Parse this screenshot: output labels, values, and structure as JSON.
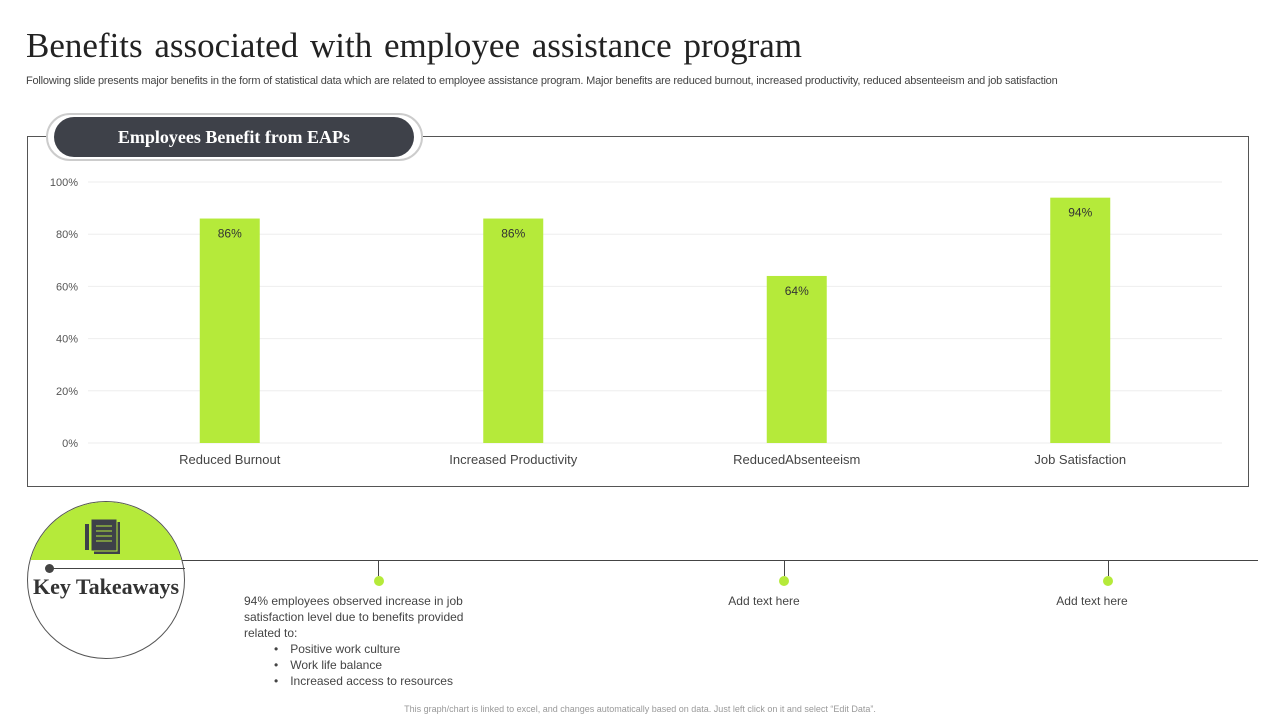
{
  "title": "Benefits associated with employee assistance program",
  "subtitle": "Following slide presents major benefits in the form of statistical data which are related to  employee assistance program. Major benefits are reduced burnout, increased productivity, reduced absenteeism and job satisfaction",
  "chart_data": {
    "type": "bar",
    "title": "Employees Benefit from EAPs",
    "categories": [
      "Reduced Burnout",
      "Increased Productivity",
      "ReducedAbsenteeism",
      "Job Satisfaction"
    ],
    "values": [
      86,
      86,
      64,
      94
    ],
    "data_labels": [
      "86%",
      "86%",
      "64%",
      "94%"
    ],
    "yticks": [
      "0%",
      "20%",
      "40%",
      "60%",
      "80%",
      "100%"
    ],
    "ylim": [
      0,
      100
    ],
    "grid": true,
    "bar_color": "#b5ea3a"
  },
  "takeaways": {
    "heading": "Key Takeaways",
    "icon": "document-pen-icon",
    "main_text": "94% employees observed  increase in job satisfaction level  due to benefits  provided related to:",
    "bullets": [
      "Positive work culture",
      "Work life balance",
      "Increased  access to resources"
    ],
    "placeholder1": "Add text here",
    "placeholder2": "Add text here"
  },
  "footer": "This graph/chart is linked to excel, and changes automatically based on data. Just left click on it and select “Edit Data”."
}
